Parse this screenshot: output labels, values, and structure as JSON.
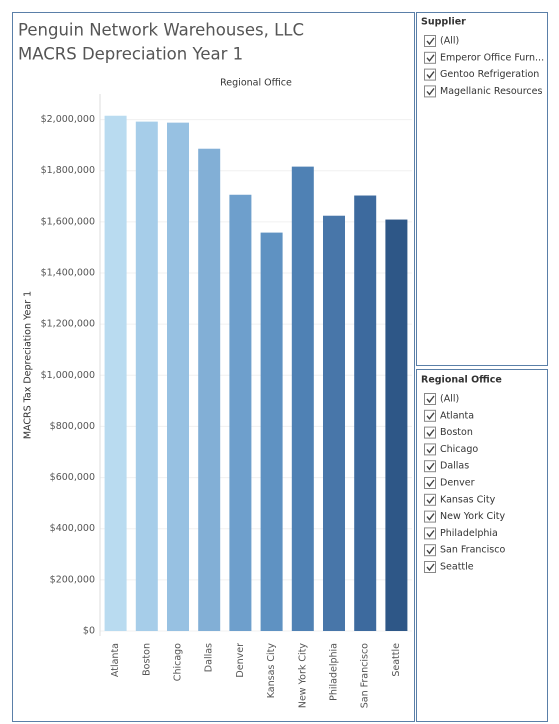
{
  "chart_data": {
    "type": "bar",
    "title": "Penguin Network Warehouses, LLC",
    "subtitle": "MACRS Depreciation Year 1",
    "x_label": "Regional Office",
    "y_label": "MACRS Tax Depreciation Year 1",
    "categories": [
      "Atlanta",
      "Boston",
      "Chicago",
      "Dallas",
      "Denver",
      "Kansas City",
      "New York City",
      "Philadelphia",
      "San Francisco",
      "Seattle"
    ],
    "values": [
      2015000,
      1992000,
      1988000,
      1886000,
      1706000,
      1558000,
      1816000,
      1624000,
      1703000,
      1609000
    ],
    "colors": [
      "#b9dbf0",
      "#a6cde9",
      "#97c1e2",
      "#82afd6",
      "#6e9fcc",
      "#5f92c2",
      "#4f81b4",
      "#4876a9",
      "#3d6a9e",
      "#2e5787"
    ],
    "ylim": [
      0,
      2100000
    ],
    "yticks": [
      {
        "value": 0,
        "label": "$0"
      },
      {
        "value": 200000,
        "label": "$200,000"
      },
      {
        "value": 400000,
        "label": "$400,000"
      },
      {
        "value": 600000,
        "label": "$600,000"
      },
      {
        "value": 800000,
        "label": "$800,000"
      },
      {
        "value": 1000000,
        "label": "$1,000,000"
      },
      {
        "value": 1200000,
        "label": "$1,200,000"
      },
      {
        "value": 1400000,
        "label": "$1,400,000"
      },
      {
        "value": 1600000,
        "label": "$1,600,000"
      },
      {
        "value": 1800000,
        "label": "$1,800,000"
      },
      {
        "value": 2000000,
        "label": "$2,000,000"
      }
    ],
    "grid": true
  },
  "filters": [
    {
      "title": "Supplier",
      "items": [
        "(All)",
        "Emperor Office Furn...",
        "Gentoo Refrigeration",
        "Magellanic Resources"
      ]
    },
    {
      "title": "Regional Office",
      "items": [
        "(All)",
        "Atlanta",
        "Boston",
        "Chicago",
        "Dallas",
        "Denver",
        "Kansas City",
        "New York City",
        "Philadelphia",
        "San Francisco",
        "Seattle"
      ]
    }
  ]
}
